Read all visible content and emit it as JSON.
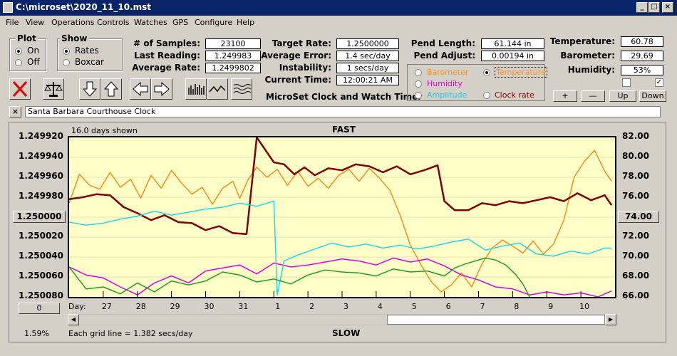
{
  "window": {
    "title": "C:\\microset\\2020_11_10.mst",
    "min": "_",
    "max": "□",
    "close": "×"
  },
  "menu": [
    "File",
    "View",
    "Operations",
    "Controls",
    "Watches",
    "GPS",
    "Configure",
    "Help"
  ],
  "plot_group": {
    "title": "Plot",
    "on": "On",
    "off": "Off"
  },
  "show_group": {
    "title": "Show",
    "rates": "Rates",
    "boxcar": "Boxcar"
  },
  "stats": {
    "samples_label": "# of Samples:",
    "samples": "23100",
    "last_label": "Last Reading:",
    "last": "1.249983",
    "avg_rate_label": "Average Rate:",
    "avg_rate": "1.2499802",
    "target_label": "Target Rate:",
    "target": "1.2500000",
    "avg_err_label": "Average Error:",
    "avg_err": "1.4 sec/day",
    "instab_label": "Instability:",
    "instab": "1 secs/day",
    "time_label": "Current Time:",
    "time": "12:00:21 AM",
    "pend_len_label": "Pend Length:",
    "pend_len": "61.144 in",
    "pend_adj_label": "Pend Adjust:",
    "pend_adj": "0.00194 in",
    "temp_label": "Temperature:",
    "temp": "60.78",
    "baro_label": "Barometer:",
    "baro": "29.69",
    "hum_label": "Humidity:",
    "hum": "53%"
  },
  "app_name": "MicroSet Clock and Watch Timer",
  "sensors": {
    "barometer": "Barometer",
    "temperature": "Temperature",
    "humidity": "Humidity",
    "amplitude": "Amplitude",
    "clock_rate": "Clock rate"
  },
  "buttons": {
    "plus": "+",
    "minus": "—",
    "up": "Up",
    "down": "Down"
  },
  "clock_name": "Santa Barbara Courthouse Clock",
  "clock_close": "×",
  "chart": {
    "days_shown": "16.0 days shown",
    "fast": "FAST",
    "slow": "SLOW",
    "left_box": "1.250000",
    "right_box": "74.00",
    "zero_box": "0",
    "pct": "1.59%",
    "grid_note": "Each grid line = 1.382 secs/day",
    "day_label": "Day:"
  },
  "chart_data": {
    "type": "line",
    "left_axis": {
      "ticks": [
        "1.249920",
        "1.249940",
        "1.249960",
        "1.249980",
        "1.250000",
        "1.250020",
        "1.250040",
        "1.250060",
        "1.250080"
      ],
      "ylim": [
        1.24992,
        1.25008
      ]
    },
    "right_axis": {
      "ticks": [
        "82.00",
        "80.00",
        "78.00",
        "76.00",
        "74.00",
        "72.00",
        "70.00",
        "68.00",
        "66.00"
      ],
      "ylim": [
        66,
        82
      ]
    },
    "x_ticks": [
      "27",
      "28",
      "29",
      "30",
      "31",
      "1",
      "2",
      "3",
      "4",
      "5",
      "6",
      "7",
      "8",
      "9",
      "10"
    ],
    "grid": true,
    "series": [
      {
        "name": "Temperature",
        "color": "#ff8c1a",
        "axis": "right",
        "x": [
          0,
          0.3,
          0.6,
          0.9,
          1.2,
          1.5,
          1.8,
          2.1,
          2.4,
          2.7,
          3.0,
          3.3,
          3.6,
          3.9,
          4.2,
          4.5,
          4.8,
          5.0,
          5.25,
          5.5,
          5.8,
          6.1,
          6.4,
          6.7,
          7.0,
          7.3,
          7.6,
          7.9,
          8.2,
          8.5,
          8.8,
          9.1,
          9.4,
          9.7,
          10.0,
          10.3,
          10.6,
          10.9,
          11.2,
          11.5,
          11.8,
          12.1,
          12.4,
          12.7,
          13.0,
          13.3,
          13.6,
          13.9,
          14.2,
          14.5,
          14.8,
          15.1,
          15.4,
          15.7,
          15.9
        ],
        "values": [
          75.4,
          78.3,
          77.2,
          76.8,
          78.5,
          77.0,
          77.8,
          75.9,
          78.2,
          76.9,
          78.7,
          77.4,
          76.3,
          77.0,
          75.3,
          76.9,
          77.6,
          75.9,
          77.8,
          79.0,
          78.0,
          78.8,
          77.2,
          78.6,
          77.1,
          77.9,
          76.9,
          78.2,
          78.8,
          77.6,
          78.9,
          77.9,
          76.7,
          74.2,
          71.2,
          69.3,
          67.6,
          66.5,
          67.2,
          68.4,
          67.0,
          69.3,
          70.9,
          71.7,
          71.1,
          70.4,
          71.6,
          70.3,
          71.3,
          73.7,
          78.0,
          79.6,
          80.7,
          78.6,
          77.6
        ]
      },
      {
        "name": "Clock rate",
        "color": "#800000",
        "axis": "left",
        "x": [
          0,
          0.4,
          0.8,
          1.2,
          1.6,
          2.0,
          2.4,
          2.8,
          3.2,
          3.6,
          4.0,
          4.4,
          4.8,
          5.2,
          5.5,
          6.0,
          6.3,
          6.6,
          6.9,
          7.2,
          7.6,
          8.0,
          8.4,
          8.8,
          9.2,
          9.6,
          10.0,
          10.4,
          10.8,
          11.0,
          11.3,
          11.7,
          12.1,
          12.5,
          12.9,
          13.3,
          13.7,
          14.1,
          14.5,
          14.9,
          15.3,
          15.7,
          15.9
        ],
        "values": [
          1.249982,
          1.24998,
          1.249977,
          1.249978,
          1.24999,
          1.249996,
          1.250003,
          1.249998,
          1.250005,
          1.250006,
          1.250013,
          1.250009,
          1.250016,
          1.250017,
          1.24992,
          1.249945,
          1.249947,
          1.249957,
          1.24995,
          1.249958,
          1.249951,
          1.249953,
          1.249947,
          1.249949,
          1.249955,
          1.249949,
          1.249957,
          1.249953,
          1.249948,
          1.249984,
          1.249993,
          1.249993,
          1.249986,
          1.249988,
          1.249984,
          1.249986,
          1.249983,
          1.24998,
          1.249984,
          1.249976,
          1.249983,
          1.249978,
          1.249988
        ]
      },
      {
        "name": "Humidity",
        "color": "#e000e0",
        "axis": "right",
        "x": [
          0,
          0.5,
          1.0,
          1.5,
          2.0,
          2.5,
          3.0,
          3.5,
          4.0,
          4.5,
          5.0,
          5.5,
          6.0,
          6.5,
          7.0,
          7.5,
          8.0,
          8.5,
          9.0,
          9.5,
          10.0,
          10.5,
          11.0,
          11.5,
          12.0,
          12.5,
          13.0,
          13.5,
          14.0,
          14.5,
          15.0,
          15.5,
          15.9
        ],
        "values": [
          69.0,
          68.2,
          67.9,
          67.0,
          66.2,
          67.4,
          68.1,
          67.4,
          68.6,
          68.9,
          69.2,
          68.3,
          69.4,
          69.0,
          69.2,
          69.5,
          69.8,
          69.6,
          69.2,
          69.9,
          69.5,
          69.8,
          69.1,
          68.2,
          67.7,
          67.0,
          66.8,
          66.2,
          66.5,
          66.2,
          66.4,
          66.0,
          66.6
        ]
      },
      {
        "name": "Amplitude",
        "color": "#22d8e8",
        "axis": "right",
        "x": [
          0,
          0.5,
          1.0,
          1.5,
          2.0,
          2.5,
          3.0,
          3.5,
          4.0,
          4.5,
          5.0,
          5.5,
          6.0,
          6.1,
          6.3,
          6.7,
          7.2,
          7.7,
          8.2,
          8.7,
          9.2,
          9.7,
          10.2,
          10.7,
          11.2,
          11.7,
          12.2,
          12.7,
          13.2,
          13.7,
          14.2,
          14.7,
          15.2,
          15.7,
          15.9
        ],
        "values": [
          73.5,
          73.2,
          73.4,
          73.8,
          74.1,
          74.6,
          74.2,
          74.5,
          74.8,
          75.0,
          75.4,
          75.1,
          75.6,
          66.2,
          69.6,
          70.2,
          70.8,
          71.4,
          71.0,
          71.3,
          70.9,
          71.2,
          70.8,
          71.1,
          71.5,
          71.8,
          70.7,
          71.1,
          71.4,
          70.3,
          70.1,
          70.6,
          70.3,
          70.9,
          70.9
        ]
      },
      {
        "name": "Barometer",
        "color": "#20a020",
        "axis": "right",
        "x": [
          0,
          0.5,
          1.0,
          1.5,
          2.0,
          2.5,
          3.0,
          3.5,
          4.0,
          4.5,
          5.0,
          5.5,
          6.0,
          6.5,
          7.0,
          7.5,
          8.0,
          8.5,
          9.0,
          9.5,
          10.0,
          10.5,
          11.0,
          11.3,
          11.6,
          11.9,
          12.2,
          12.5,
          12.8,
          13.1,
          13.3,
          13.5
        ],
        "values": [
          69.0,
          66.8,
          67.0,
          66.3,
          67.4,
          66.5,
          67.6,
          67.2,
          67.6,
          68.5,
          68.2,
          67.5,
          67.8,
          67.3,
          68.2,
          68.7,
          68.5,
          68.4,
          68.1,
          68.8,
          68.5,
          68.6,
          68.1,
          68.9,
          69.3,
          69.6,
          69.9,
          69.7,
          69.2,
          68.2,
          67.3,
          66.0
        ]
      }
    ]
  }
}
